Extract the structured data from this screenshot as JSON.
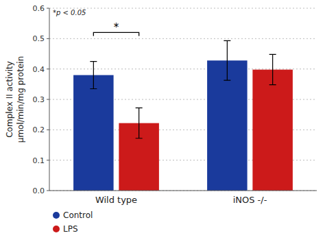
{
  "chart_data": {
    "type": "bar",
    "categories": [
      "Wild type",
      "iNOS -/-"
    ],
    "series": [
      {
        "name": "Control",
        "color": "#1a3a9c",
        "values": [
          0.38,
          0.428
        ],
        "errors": [
          0.045,
          0.065
        ]
      },
      {
        "name": "LPS",
        "color": "#cc1a1a",
        "values": [
          0.222,
          0.398
        ],
        "errors": [
          0.05,
          0.05
        ]
      }
    ],
    "y_label": "Complex II activity\nμmol/min/mg protein",
    "ylim": [
      0,
      0.6
    ],
    "yticks": [
      {
        "value": 0,
        "label": "0.0"
      },
      0.1,
      0.2,
      0.3,
      0.4,
      0.5,
      0.6
    ],
    "grid": true,
    "legend": "bottom",
    "annotation": "*p < 0.05",
    "significance": [
      {
        "text": "*",
        "category": "Wild type",
        "series": [
          "Control",
          "LPS"
        ],
        "y": 0.52
      }
    ]
  }
}
